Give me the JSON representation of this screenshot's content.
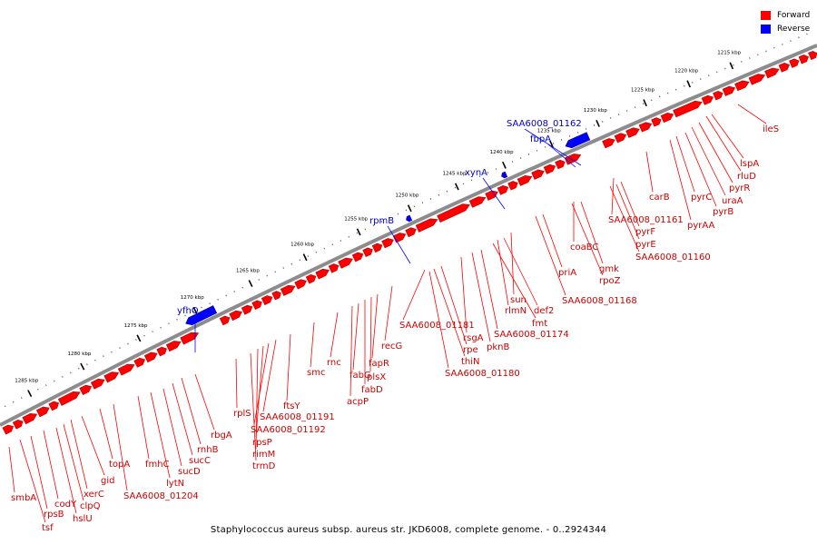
{
  "caption": "Staphylococcus aureus subsp. aureus str. JKD6008, complete genome. - 0..2924344",
  "legend": [
    {
      "label": "Forward",
      "color": "#ff0000"
    },
    {
      "label": "Reverse",
      "color": "#0000ff"
    }
  ],
  "colors": {
    "forward": "#ff0000",
    "forward_dark": "#b00000",
    "reverse": "#0000ff",
    "reverse_dark": "#000090",
    "backbone": "#9a9a9a"
  },
  "ruler_labels": [
    "1215 kbp",
    "1220 kbp",
    "1225 kbp",
    "1230 kbp",
    "1235 kbp",
    "1240 kbp",
    "1245 kbp",
    "1250 kbp",
    "1255 kbp",
    "1260 kbp",
    "1265 kbp",
    "1270 kbp",
    "1275 kbp",
    "1280 kbp",
    "1285 kbp"
  ],
  "forward_labels": [
    "ileS",
    "lspA",
    "rluD",
    "pyrR",
    "uraA",
    "pyrB",
    "pyrC",
    "pyrAA",
    "carB",
    "SAA6008_01161",
    "pyrF",
    "pyrE",
    "SAA6008_01160",
    "coaBC",
    "gmk",
    "rpoZ",
    "priA",
    "SAA6008_01168",
    "sun",
    "def2",
    "rlmN",
    "fmt",
    "SAA6008_01174",
    "pknB",
    "rsgA",
    "SAA6008_01181",
    "rpe",
    "thiN",
    "SAA6008_01180",
    "recG",
    "fapR",
    "plsX",
    "fabD",
    "fabG",
    "acpP",
    "rnc",
    "smc",
    "ftsY",
    "SAA6008_01191",
    "SAA6008_01192",
    "rpsP",
    "rimM",
    "trmD",
    "rplS",
    "rbgA",
    "rnhB",
    "sucC",
    "sucD",
    "lytN",
    "fmhC",
    "SAA6008_01204",
    "topA",
    "gid",
    "xerC",
    "clpQ",
    "hslU",
    "codY",
    "rpsB",
    "tsf",
    "smbA"
  ],
  "reverse_labels": [
    "SAA6008_01162",
    "fbpA",
    "xynA",
    "rpmB",
    "yfhO"
  ]
}
